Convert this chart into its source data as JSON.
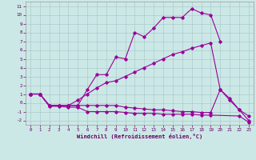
{
  "xlabel": "Windchill (Refroidissement éolien,°C)",
  "background_color": "#cce8e6",
  "grid_color": "#aacccc",
  "line_color": "#990099",
  "xlim": [
    -0.5,
    23.5
  ],
  "ylim": [
    -2.5,
    11.5
  ],
  "xticks": [
    0,
    1,
    2,
    3,
    4,
    5,
    6,
    7,
    8,
    9,
    10,
    11,
    12,
    13,
    14,
    15,
    16,
    17,
    18,
    19,
    20,
    21,
    22,
    23
  ],
  "yticks": [
    -2,
    -1,
    0,
    1,
    2,
    3,
    4,
    5,
    6,
    7,
    8,
    9,
    10,
    11
  ],
  "series": [
    {
      "x": [
        0,
        1,
        2,
        3,
        4,
        5,
        6,
        7,
        8,
        9,
        10,
        11,
        12,
        13,
        14,
        15,
        16,
        17,
        18,
        19,
        20
      ],
      "y": [
        1,
        1,
        -0.3,
        -0.3,
        -0.3,
        -0.3,
        1.5,
        3.2,
        3.2,
        5.2,
        5.0,
        8.0,
        7.5,
        8.5,
        9.7,
        9.7,
        9.7,
        10.7,
        10.2,
        10.0,
        7.0
      ]
    },
    {
      "x": [
        0,
        1,
        2,
        3,
        4,
        5,
        6,
        7,
        8,
        9,
        10,
        11,
        12,
        13,
        14,
        15,
        16,
        17,
        18,
        19,
        20,
        21,
        22,
        23
      ],
      "y": [
        1,
        1,
        -0.3,
        -0.3,
        -0.3,
        0.3,
        1.0,
        1.7,
        2.3,
        2.5,
        3.0,
        3.5,
        4.0,
        4.5,
        5.0,
        5.5,
        5.8,
        6.2,
        6.5,
        6.8,
        1.5,
        0.5,
        -0.8,
        -1.5
      ]
    },
    {
      "x": [
        0,
        1,
        2,
        3,
        4,
        5,
        6,
        7,
        8,
        9,
        10,
        11,
        12,
        13,
        14,
        15,
        16,
        17,
        18,
        19,
        20,
        21,
        22,
        23
      ],
      "y": [
        1,
        1,
        -0.3,
        -0.3,
        -0.3,
        -0.3,
        -0.3,
        -0.3,
        -0.3,
        -0.3,
        -0.5,
        -0.6,
        -0.7,
        -0.8,
        -0.8,
        -0.9,
        -1.0,
        -1.0,
        -1.1,
        -1.1,
        1.5,
        0.3,
        -0.8,
        -2.0
      ]
    },
    {
      "x": [
        0,
        1,
        2,
        3,
        4,
        5,
        6,
        7,
        8,
        9,
        10,
        11,
        12,
        13,
        14,
        15,
        16,
        17,
        18,
        19,
        22,
        23
      ],
      "y": [
        1,
        1,
        -0.4,
        -0.4,
        -0.5,
        -0.5,
        -1.0,
        -1.0,
        -1.0,
        -1.0,
        -1.1,
        -1.2,
        -1.2,
        -1.2,
        -1.3,
        -1.3,
        -1.3,
        -1.3,
        -1.4,
        -1.4,
        -1.5,
        -2.2
      ]
    }
  ]
}
